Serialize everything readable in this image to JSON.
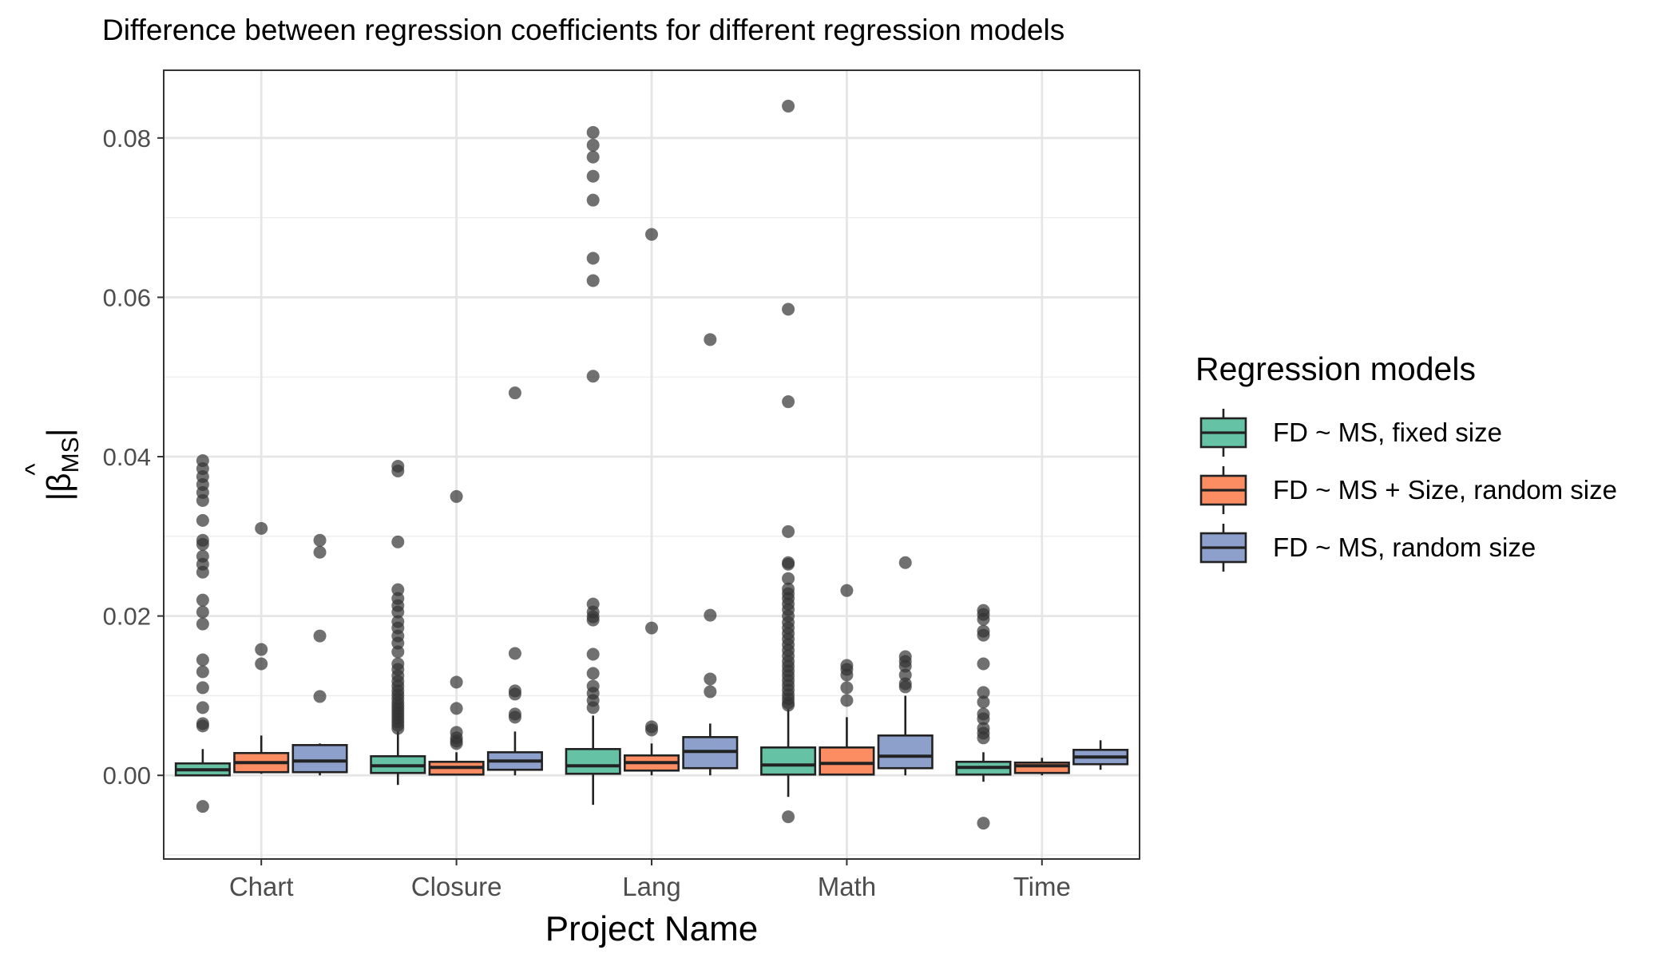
{
  "chart_data": {
    "type": "boxplot",
    "title": "Difference between regression coefficients for different regression models",
    "xlabel": "Project Name",
    "ylabel_main": "|β",
    "ylabel_hat": "^",
    "ylabel_sub": "MS",
    "ylabel_end": "|",
    "ylim": [
      -0.0105,
      0.0885
    ],
    "yticks": [
      0.0,
      0.02,
      0.04,
      0.06,
      0.08
    ],
    "ytick_labels": [
      "0.00",
      "0.02",
      "0.04",
      "0.06",
      "0.08"
    ],
    "grid": true,
    "legend": {
      "title": "Regression models",
      "position": "right"
    },
    "categories": [
      "Chart",
      "Closure",
      "Lang",
      "Math",
      "Time"
    ],
    "series": [
      {
        "name": "FD ~ MS, fixed size",
        "color": "#66c2a5",
        "boxes": [
          {
            "whisker_low": 0.0,
            "q1": 0.0,
            "median": 0.0007,
            "q3": 0.0015,
            "whisker_high": 0.0033,
            "outliers": [
              0.0395,
              0.0385,
              0.0375,
              0.0365,
              0.0355,
              0.0345,
              0.032,
              0.0295,
              0.029,
              0.0275,
              0.0265,
              0.0255,
              0.022,
              0.0205,
              0.019,
              0.0145,
              0.013,
              0.011,
              0.0085,
              0.0065,
              0.0062,
              -0.0039
            ]
          },
          {
            "whisker_low": -0.0012,
            "q1": 0.0003,
            "median": 0.0012,
            "q3": 0.0024,
            "whisker_high": 0.0055,
            "outliers": [
              0.0388,
              0.0382,
              0.0293,
              0.0233,
              0.0222,
              0.0213,
              0.0205,
              0.0193,
              0.0185,
              0.0175,
              0.0166,
              0.0155,
              0.014,
              0.0133,
              0.0125,
              0.0118,
              0.0112,
              0.0106,
              0.0101,
              0.0096,
              0.0091,
              0.0087,
              0.0083,
              0.0079,
              0.0075,
              0.0071,
              0.0067,
              0.0063,
              0.0059
            ]
          },
          {
            "whisker_low": -0.0037,
            "q1": 0.0002,
            "median": 0.0012,
            "q3": 0.0033,
            "whisker_high": 0.0075,
            "outliers": [
              0.0807,
              0.0791,
              0.0776,
              0.0752,
              0.0722,
              0.0649,
              0.0621,
              0.0501,
              0.0215,
              0.0205,
              0.0199,
              0.0195,
              0.0152,
              0.0128,
              0.0112,
              0.0103,
              0.0094,
              0.0085
            ]
          },
          {
            "whisker_low": -0.0027,
            "q1": 0.0001,
            "median": 0.0013,
            "q3": 0.0035,
            "whisker_high": 0.0083,
            "outliers": [
              0.084,
              0.0585,
              0.0469,
              0.0306,
              0.0267,
              0.0265,
              0.0247,
              0.0234,
              0.0228,
              0.0222,
              0.0215,
              0.0208,
              0.02,
              0.0192,
              0.0185,
              0.0178,
              0.0171,
              0.0164,
              0.0157,
              0.015,
              0.0143,
              0.0137,
              0.0131,
              0.0125,
              0.0119,
              0.0113,
              0.0107,
              0.0101,
              0.0096,
              0.0091,
              0.0088,
              -0.0052
            ]
          },
          {
            "whisker_low": -0.0008,
            "q1": 0.0001,
            "median": 0.001,
            "q3": 0.0017,
            "whisker_high": 0.0029,
            "outliers": [
              0.0207,
              0.0202,
              0.0196,
              0.0181,
              0.0176,
              0.014,
              0.0104,
              0.0092,
              0.0077,
              0.0071,
              0.0059,
              0.0053,
              0.0047,
              -0.006
            ]
          }
        ]
      },
      {
        "name": "FD ~ MS + Size, random size",
        "color": "#fc8d62",
        "boxes": [
          {
            "whisker_low": 0.0002,
            "q1": 0.0004,
            "median": 0.0016,
            "q3": 0.0028,
            "whisker_high": 0.005,
            "outliers": [
              0.031,
              0.0158,
              0.014
            ]
          },
          {
            "whisker_low": 0.0,
            "q1": 0.0001,
            "median": 0.001,
            "q3": 0.0017,
            "whisker_high": 0.0029,
            "outliers": [
              0.035,
              0.0117,
              0.0084,
              0.0054,
              0.0047,
              0.0043,
              0.004
            ]
          },
          {
            "whisker_low": 0.0,
            "q1": 0.0006,
            "median": 0.0016,
            "q3": 0.0025,
            "whisker_high": 0.004,
            "outliers": [
              0.0679,
              0.0185,
              0.0061,
              0.0057
            ]
          },
          {
            "whisker_low": 0.0,
            "q1": 0.0001,
            "median": 0.0015,
            "q3": 0.0035,
            "whisker_high": 0.0073,
            "outliers": [
              0.0232,
              0.0138,
              0.0133,
              0.0126,
              0.011,
              0.0094
            ]
          },
          {
            "whisker_low": 0.0,
            "q1": 0.0003,
            "median": 0.0012,
            "q3": 0.0016,
            "whisker_high": 0.0022,
            "outliers": []
          }
        ]
      },
      {
        "name": "FD ~ MS, random size",
        "color": "#8da0cb",
        "boxes": [
          {
            "whisker_low": 0.0,
            "q1": 0.0004,
            "median": 0.0018,
            "q3": 0.0038,
            "whisker_high": 0.004,
            "outliers": [
              0.0295,
              0.028,
              0.0175,
              0.0099
            ]
          },
          {
            "whisker_low": 0.0,
            "q1": 0.0007,
            "median": 0.0018,
            "q3": 0.0029,
            "whisker_high": 0.0055,
            "outliers": [
              0.048,
              0.0153,
              0.0106,
              0.0102,
              0.0077,
              0.0073
            ]
          },
          {
            "whisker_low": 0.0,
            "q1": 0.0009,
            "median": 0.003,
            "q3": 0.0048,
            "whisker_high": 0.0065,
            "outliers": [
              0.0547,
              0.0201,
              0.0121,
              0.0105
            ]
          },
          {
            "whisker_low": 0.0,
            "q1": 0.0009,
            "median": 0.0024,
            "q3": 0.005,
            "whisker_high": 0.01,
            "outliers": [
              0.0267,
              0.0149,
              0.0143,
              0.0137,
              0.0126,
              0.0115,
              0.0111
            ]
          },
          {
            "whisker_low": 0.0007,
            "q1": 0.0014,
            "median": 0.0023,
            "q3": 0.0032,
            "whisker_high": 0.0044,
            "outliers": []
          }
        ]
      }
    ]
  }
}
